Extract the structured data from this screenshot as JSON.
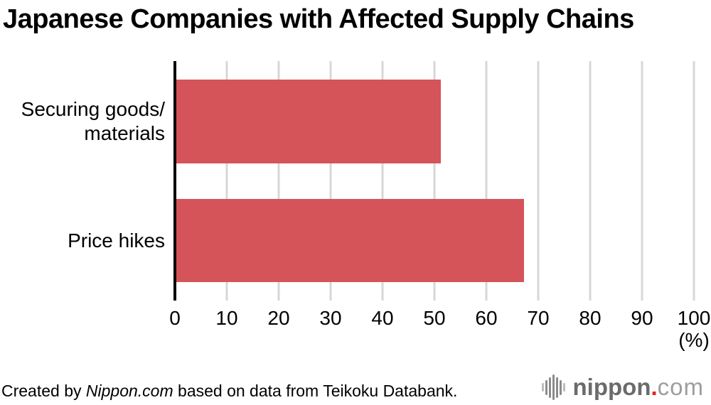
{
  "title": "Japanese Companies with Affected Supply Chains",
  "chart_data": {
    "type": "bar",
    "orientation": "horizontal",
    "title": "Japanese Companies with Affected Supply Chains",
    "categories": [
      "Securing goods/\nmaterials",
      "Price hikes"
    ],
    "values": [
      51,
      67
    ],
    "xlabel": "(%)",
    "ylabel": "",
    "xlim": [
      0,
      100
    ],
    "x_ticks": [
      0,
      10,
      20,
      30,
      40,
      50,
      60,
      70,
      80,
      90,
      100
    ],
    "x_unit_label": "(%)",
    "grid": true,
    "legend": "none",
    "bar_color": "#d45459",
    "gridline_color": "#d7d7d7",
    "axis_color": "#000000"
  },
  "footer": {
    "credit_prefix": "Created by ",
    "credit_source": "Nippon.com",
    "credit_suffix": " based on data from Teikoku Databank."
  },
  "logo": {
    "icon": "soundwave-bars-icon",
    "name_bold": "nippon",
    "dot": ".",
    "domain": "com",
    "name_color": "#6b6b6b",
    "dot_color": "#e8211a",
    "domain_color": "#9d9d9d",
    "bar_color_outer": "#bcbcbc",
    "bar_color_inner": "#8b8b8b"
  }
}
